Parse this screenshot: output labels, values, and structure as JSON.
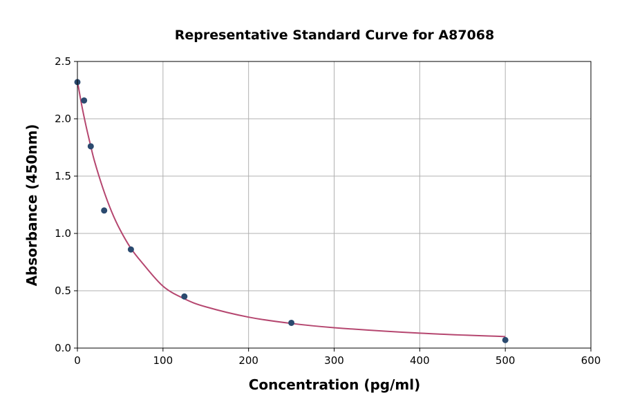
{
  "chart_data": {
    "type": "scatter",
    "title": "Representative Standard Curve for A87068",
    "xlabel": "Concentration (pg/ml)",
    "ylabel": "Absorbance (450nm)",
    "xlim": [
      0,
      600
    ],
    "ylim": [
      0,
      2.5
    ],
    "xticks": [
      "0",
      "100",
      "200",
      "300",
      "400",
      "500",
      "600"
    ],
    "yticks": [
      "0.0",
      "0.5",
      "1.0",
      "1.5",
      "2.0",
      "2.5"
    ],
    "grid": true,
    "points": [
      {
        "x": 0,
        "y": 2.32
      },
      {
        "x": 7.8,
        "y": 2.16
      },
      {
        "x": 15.6,
        "y": 1.76
      },
      {
        "x": 31.25,
        "y": 1.2
      },
      {
        "x": 62.5,
        "y": 0.86
      },
      {
        "x": 125,
        "y": 0.45
      },
      {
        "x": 250,
        "y": 0.22
      },
      {
        "x": 500,
        "y": 0.07
      }
    ],
    "fit_curve": [
      [
        0,
        2.33
      ],
      [
        5,
        2.12
      ],
      [
        10,
        1.94
      ],
      [
        15,
        1.78
      ],
      [
        20,
        1.63
      ],
      [
        30,
        1.39
      ],
      [
        40,
        1.19
      ],
      [
        50,
        1.03
      ],
      [
        62.5,
        0.87
      ],
      [
        75,
        0.75
      ],
      [
        100,
        0.54
      ],
      [
        125,
        0.43
      ],
      [
        150,
        0.36
      ],
      [
        200,
        0.27
      ],
      [
        250,
        0.215
      ],
      [
        300,
        0.178
      ],
      [
        400,
        0.13
      ],
      [
        500,
        0.1
      ]
    ],
    "colors": {
      "points": "#2b4a6f",
      "curve": "#b5466f",
      "grid": "#b0b0b0"
    }
  }
}
